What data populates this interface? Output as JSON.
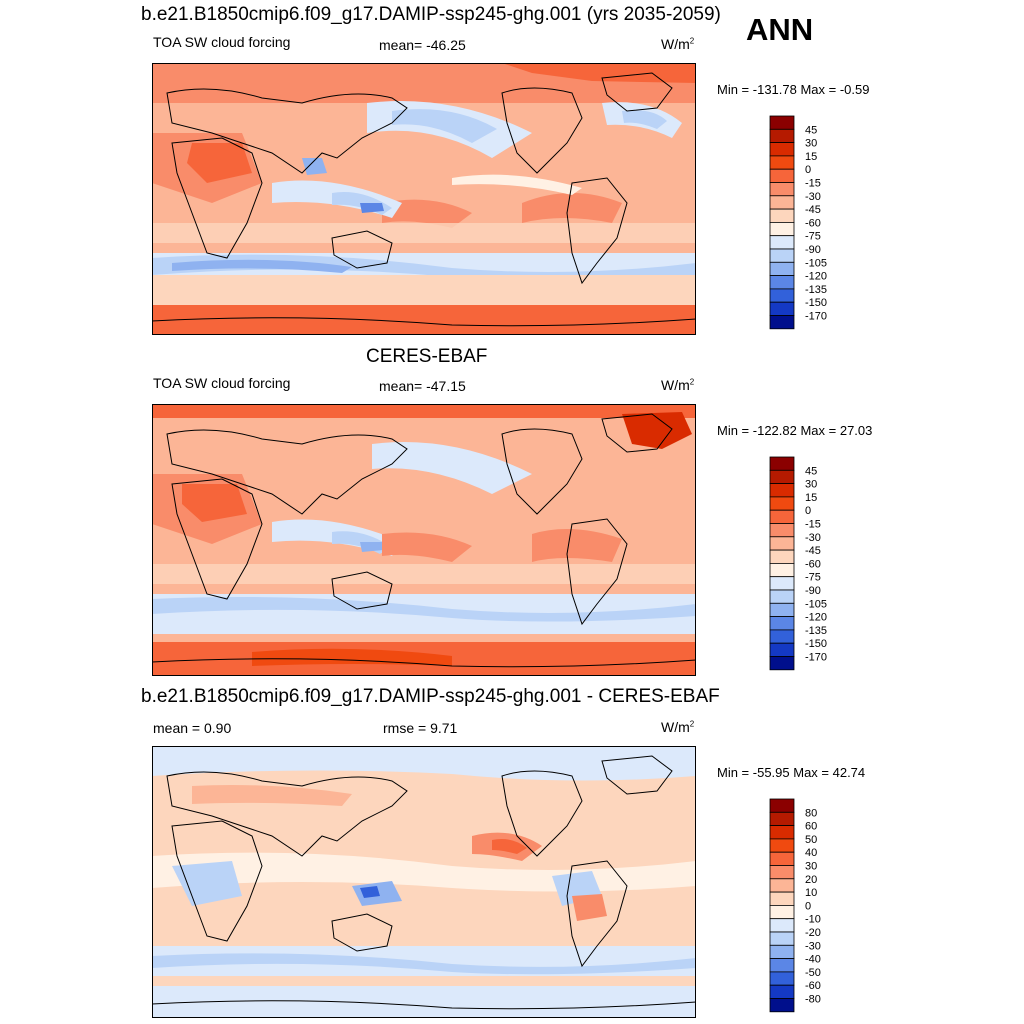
{
  "header": {
    "season": "ANN"
  },
  "panels": [
    {
      "title": "b.e21.B1850cmip6.f09_g17.DAMIP-ssp245-ghg.001 (yrs 2035-2059)",
      "left_label": "TOA SW cloud forcing",
      "center_label": "mean= -46.25",
      "units_base": "W/m",
      "units_exp": "2",
      "minmax": "Min = -131.78 Max =  -0.59",
      "colorbar": "abs",
      "map": "model"
    },
    {
      "title": "CERES-EBAF",
      "left_label": "TOA SW cloud forcing",
      "center_label": "mean= -47.15",
      "units_base": "W/m",
      "units_exp": "2",
      "minmax": "Min = -122.82 Max =  27.03",
      "colorbar": "abs",
      "map": "obs"
    },
    {
      "title": "b.e21.B1850cmip6.f09_g17.DAMIP-ssp245-ghg.001 - CERES-EBAF",
      "left_label": "mean =   0.90",
      "center_label": "rmse =   9.71",
      "units_base": "W/m",
      "units_exp": "2",
      "minmax": "Min = -55.95 Max =  42.74",
      "colorbar": "diff",
      "map": "diff"
    }
  ],
  "colorbars": {
    "abs": {
      "labels": [
        "45",
        "30",
        "15",
        "0",
        "-15",
        "-30",
        "-45",
        "-60",
        "-75",
        "-90",
        "-105",
        "-120",
        "-135",
        "-150",
        "-170"
      ],
      "colors": [
        "#8b0000",
        "#b51a00",
        "#d92b00",
        "#f04a10",
        "#f6653a",
        "#f98c6a",
        "#fcb596",
        "#fdd6bd",
        "#fff1e4",
        "#dce9fb",
        "#bad3f7",
        "#8fb2f0",
        "#5b86e6",
        "#3261da",
        "#1439c4",
        "#000f8c"
      ]
    },
    "diff": {
      "labels": [
        "80",
        "60",
        "50",
        "40",
        "30",
        "20",
        "10",
        "0",
        "-10",
        "-20",
        "-30",
        "-40",
        "-50",
        "-60",
        "-80"
      ],
      "colors": [
        "#8b0000",
        "#b51a00",
        "#d92b00",
        "#f04a10",
        "#f6653a",
        "#f98c6a",
        "#fcb596",
        "#fdd6bd",
        "#fff1e4",
        "#dce9fb",
        "#bad3f7",
        "#8fb2f0",
        "#5b86e6",
        "#3261da",
        "#1439c4",
        "#000f8c"
      ]
    }
  }
}
